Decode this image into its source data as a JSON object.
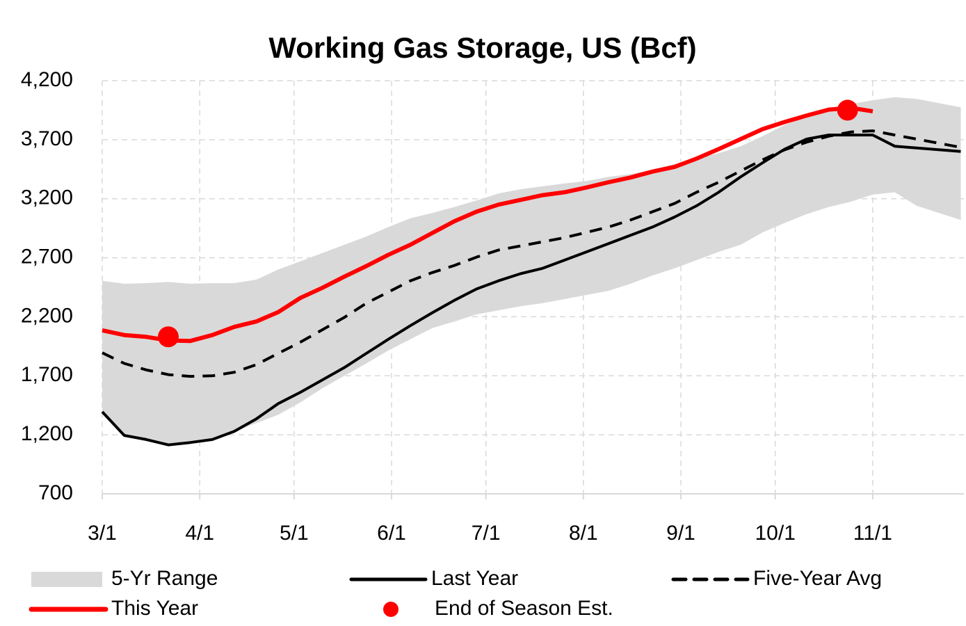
{
  "chart_data": {
    "type": "line",
    "title": "Working Gas Storage, US (Bcf)",
    "x": [
      "3/1",
      "3/8",
      "3/15",
      "3/22",
      "3/29",
      "4/5",
      "4/12",
      "4/19",
      "4/26",
      "5/3",
      "5/10",
      "5/17",
      "5/24",
      "5/31",
      "6/7",
      "6/14",
      "6/21",
      "6/28",
      "7/5",
      "7/12",
      "7/19",
      "7/26",
      "8/2",
      "8/9",
      "8/16",
      "8/23",
      "8/30",
      "9/6",
      "9/13",
      "9/20",
      "9/27",
      "10/4",
      "10/11",
      "10/18",
      "10/25",
      "11/1",
      "11/8",
      "11/15",
      "11/22",
      "11/29"
    ],
    "xlim": [
      "3/1",
      "11/30"
    ],
    "xticks": [
      "3/1",
      "4/1",
      "5/1",
      "6/1",
      "7/1",
      "8/1",
      "9/1",
      "10/1",
      "11/1"
    ],
    "ylim": [
      700,
      4200
    ],
    "yticks": [
      {
        "value": 700,
        "label": "700"
      },
      {
        "value": 1200,
        "label": "1,200"
      },
      {
        "value": 1700,
        "label": "1,700"
      },
      {
        "value": 2200,
        "label": "2,200"
      },
      {
        "value": 2700,
        "label": "2,700"
      },
      {
        "value": 3200,
        "label": "3,200"
      },
      {
        "value": 3700,
        "label": "3,700"
      },
      {
        "value": 4200,
        "label": "4,200"
      }
    ],
    "grid": true,
    "series": [
      {
        "name": "5-Yr Range",
        "color": "#d9d9d9",
        "low": [
          1405,
          1195,
          1160,
          1115,
          1135,
          1160,
          1230,
          1300,
          1370,
          1475,
          1595,
          1700,
          1805,
          1915,
          2010,
          2105,
          2160,
          2220,
          2255,
          2290,
          2315,
          2350,
          2385,
          2420,
          2480,
          2550,
          2610,
          2680,
          2750,
          2810,
          2915,
          2995,
          3070,
          3130,
          3175,
          3235,
          3255,
          3140,
          3080,
          3020
        ],
        "high": [
          2505,
          2480,
          2485,
          2495,
          2480,
          2485,
          2485,
          2515,
          2600,
          2670,
          2740,
          2810,
          2880,
          2960,
          3035,
          3080,
          3130,
          3185,
          3245,
          3280,
          3305,
          3330,
          3350,
          3385,
          3410,
          3445,
          3495,
          3540,
          3585,
          3645,
          3730,
          3825,
          3895,
          3955,
          4000,
          4035,
          4060,
          4045,
          4010,
          3975
        ]
      },
      {
        "name": "Last Year",
        "color": "#000000",
        "values": [
          1395,
          1195,
          1160,
          1115,
          1135,
          1160,
          1230,
          1335,
          1465,
          1560,
          1665,
          1770,
          1890,
          2010,
          2125,
          2235,
          2340,
          2435,
          2505,
          2565,
          2610,
          2680,
          2750,
          2820,
          2890,
          2960,
          3045,
          3140,
          3255,
          3385,
          3505,
          3620,
          3705,
          3740,
          3740,
          3740,
          3645,
          3630,
          3615,
          3600
        ]
      },
      {
        "name": "Five-Year Avg",
        "color": "#000000",
        "dashed": true,
        "values": [
          1895,
          1805,
          1750,
          1710,
          1695,
          1700,
          1730,
          1795,
          1890,
          1985,
          2090,
          2195,
          2315,
          2410,
          2505,
          2575,
          2635,
          2705,
          2765,
          2800,
          2835,
          2870,
          2915,
          2960,
          3020,
          3090,
          3160,
          3255,
          3340,
          3435,
          3530,
          3615,
          3680,
          3730,
          3765,
          3775,
          3740,
          3705,
          3670,
          3635
        ]
      },
      {
        "name": "This Year",
        "color": "#ff0000",
        "values": [
          2085,
          2045,
          2030,
          2000,
          1995,
          2045,
          2115,
          2160,
          2240,
          2360,
          2445,
          2540,
          2630,
          2725,
          2810,
          2910,
          3010,
          3090,
          3150,
          3190,
          3230,
          3255,
          3295,
          3340,
          3380,
          3430,
          3470,
          3540,
          3620,
          3705,
          3790,
          3850,
          3905,
          3955,
          3970,
          3940,
          null,
          null,
          null,
          null
        ]
      },
      {
        "name": "End of Season Est.",
        "color": "#ff0000",
        "marker": "dot",
        "x": [
          "3/22",
          "10/24"
        ],
        "values": [
          2030,
          3950
        ]
      }
    ]
  }
}
